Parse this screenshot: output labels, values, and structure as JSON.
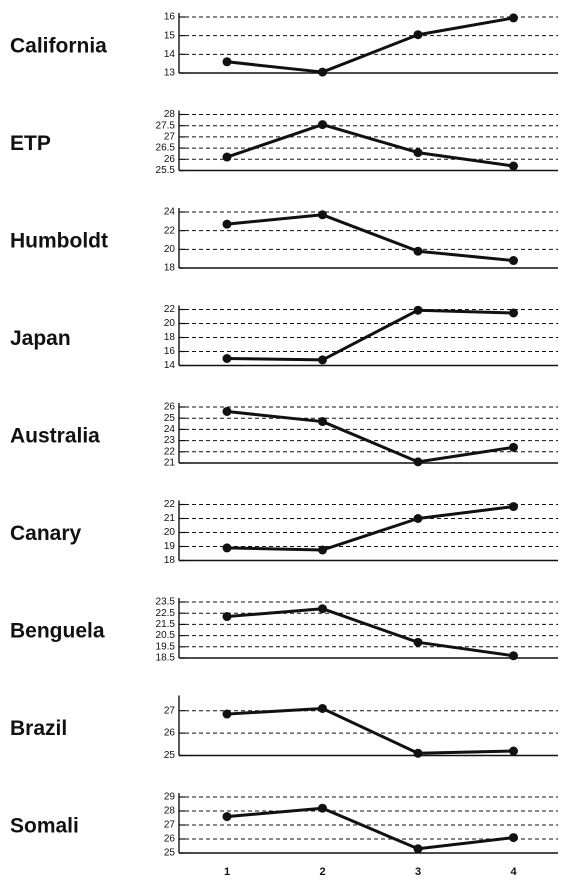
{
  "chart_data": [
    {
      "type": "line",
      "title": "California",
      "x": [
        1,
        2,
        3,
        4
      ],
      "ylim": [
        13,
        16
      ],
      "yticks": [
        13,
        14,
        15,
        16
      ],
      "ytick_labels": [
        "13",
        "14",
        "15",
        "16"
      ],
      "series": [
        {
          "values": [
            13.6,
            13.05,
            15.05,
            15.95
          ]
        }
      ]
    },
    {
      "type": "line",
      "title": "ETP",
      "x": [
        1,
        2,
        3,
        4
      ],
      "ylim": [
        25.5,
        28
      ],
      "yticks": [
        25.5,
        26,
        26.5,
        27,
        27.5,
        28
      ],
      "ytick_labels": [
        "25.5",
        "26",
        "26.5",
        "27",
        "27.5",
        "28"
      ],
      "series": [
        {
          "values": [
            26.1,
            27.55,
            26.3,
            25.7
          ]
        }
      ]
    },
    {
      "type": "line",
      "title": "Humboldt",
      "x": [
        1,
        2,
        3,
        4
      ],
      "ylim": [
        18,
        24
      ],
      "yticks": [
        18,
        20,
        22,
        24
      ],
      "ytick_labels": [
        "18",
        "20",
        "22",
        "24"
      ],
      "series": [
        {
          "values": [
            22.7,
            23.7,
            19.8,
            18.8
          ]
        }
      ]
    },
    {
      "type": "line",
      "title": "Japan",
      "x": [
        1,
        2,
        3,
        4
      ],
      "ylim": [
        14,
        22
      ],
      "yticks": [
        14,
        16,
        18,
        20,
        22
      ],
      "ytick_labels": [
        "14",
        "16",
        "18",
        "20",
        "22"
      ],
      "series": [
        {
          "values": [
            15.0,
            14.8,
            21.9,
            21.5
          ]
        }
      ]
    },
    {
      "type": "line",
      "title": "Australia",
      "x": [
        1,
        2,
        3,
        4
      ],
      "ylim": [
        21,
        26
      ],
      "yticks": [
        21,
        22,
        23,
        24,
        25,
        26
      ],
      "ytick_labels": [
        "21",
        "22",
        "23",
        "24",
        "25",
        "26"
      ],
      "series": [
        {
          "values": [
            25.6,
            24.7,
            21.1,
            22.4
          ]
        }
      ]
    },
    {
      "type": "line",
      "title": "Canary",
      "x": [
        1,
        2,
        3,
        4
      ],
      "ylim": [
        18,
        22
      ],
      "yticks": [
        18,
        19,
        20,
        21,
        22
      ],
      "ytick_labels": [
        "18",
        "19",
        "20",
        "21",
        "22"
      ],
      "series": [
        {
          "values": [
            18.9,
            18.75,
            21.0,
            21.85
          ]
        }
      ]
    },
    {
      "type": "line",
      "title": "Benguela",
      "x": [
        1,
        2,
        3,
        4
      ],
      "ylim": [
        18.5,
        23.5
      ],
      "yticks": [
        18.5,
        19.5,
        20.5,
        21.5,
        22.5,
        23.5
      ],
      "ytick_labels": [
        "18.5",
        "19.5",
        "20.5",
        "21.5",
        "22.5",
        "23.5"
      ],
      "series": [
        {
          "values": [
            22.2,
            22.9,
            19.9,
            18.7
          ]
        }
      ]
    },
    {
      "type": "line",
      "title": "Brazil",
      "x": [
        1,
        2,
        3,
        4
      ],
      "ylim": [
        25,
        27.5
      ],
      "yticks": [
        25,
        26,
        27
      ],
      "ytick_labels": [
        "25",
        "26",
        "27"
      ],
      "series": [
        {
          "values": [
            26.85,
            27.1,
            25.1,
            25.2
          ]
        }
      ]
    },
    {
      "type": "line",
      "title": "Somali",
      "x": [
        1,
        2,
        3,
        4
      ],
      "ylim": [
        25,
        29
      ],
      "yticks": [
        25,
        26,
        27,
        28,
        29
      ],
      "ytick_labels": [
        "25",
        "26",
        "27",
        "28",
        "29"
      ],
      "series": [
        {
          "values": [
            27.6,
            28.2,
            25.3,
            26.1
          ]
        }
      ]
    }
  ],
  "x_axis": {
    "ticks": [
      1,
      2,
      3,
      4
    ],
    "tick_labels": [
      "1",
      "2",
      "3",
      "4"
    ]
  },
  "style": {
    "line_color": "#111111",
    "grid_color": "#111111",
    "grid": "dashed"
  }
}
